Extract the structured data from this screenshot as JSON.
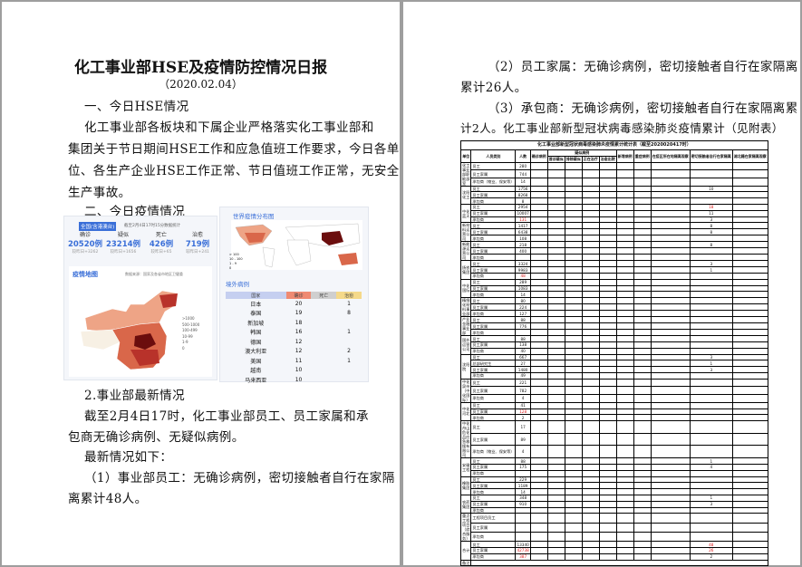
{
  "page1": {
    "title": "化工事业部HSE及疫情防控情况日报",
    "date": "（2020.02.04）",
    "section1": "一、今日HSE情况",
    "para1": [
      "化工事业部各板块和下属企业严格落实化工事业部和",
      "集团关于节日期间HSE工作和应急值班工作要求，今日各单",
      "位、各生产企业HSE工作正常、节日值班工作正常，无安全",
      "生产事故。"
    ],
    "section2": "二、今日疫情情况",
    "image": {
      "badge": "全国(含港澳台)",
      "stat_time": "截至2月4日17时15分数据统计",
      "stats": [
        {
          "label": "确诊",
          "value": "20520例",
          "delta": "较昨日+3262"
        },
        {
          "label": "疑似",
          "value": "23214例",
          "delta": "较昨日+1656"
        },
        {
          "label": "死亡",
          "value": "426例",
          "delta": "较昨日+65"
        },
        {
          "label": "治愈",
          "value": "719例",
          "delta": "较昨日+241"
        }
      ],
      "map_title": "疫情地图",
      "map_source": "数据来源：国家及各省市地区卫健委",
      "legend": [
        ">1000",
        "500-1000",
        "100-499",
        "10-99",
        "1-9",
        "0"
      ],
      "legend_colors": [
        "#6b0d0d",
        "#b8322a",
        "#d9674a",
        "#eea486",
        "#f7dcc6",
        "#f7f0e4"
      ],
      "world_title": "世界疫情分布图",
      "world_legend": [
        "> 100",
        "10 - 100",
        "1 - 9",
        "0"
      ],
      "abroad_title": "境外病例",
      "abroad_headers": [
        "国家",
        "确诊",
        "死亡",
        "治愈"
      ],
      "abroad_rows": [
        [
          "日本",
          "20",
          "",
          "1"
        ],
        [
          "泰国",
          "19",
          "",
          "8"
        ],
        [
          "新加坡",
          "18",
          "",
          ""
        ],
        [
          "韩国",
          "16",
          "",
          "1"
        ],
        [
          "德国",
          "12",
          "",
          ""
        ],
        [
          "澳大利亚",
          "12",
          "",
          "2"
        ],
        [
          "美国",
          "11",
          "",
          "1"
        ],
        [
          "越南",
          "10",
          "",
          ""
        ],
        [
          "马来西亚",
          "10",
          "",
          ""
        ]
      ]
    },
    "section3": "2.事业部最新情况",
    "para2": [
      "截至2月4日17时，化工事业部员工、员工家属和承",
      "包商无确诊病例、无疑似病例。"
    ],
    "para3": "最新情况如下：",
    "para4": [
      "（1）事业部员工：无确诊病例，密切接触者自行在家隔",
      "离累计48人。"
    ]
  },
  "page2": {
    "lines": [
      "（2）员工家属：无确诊病例，密切接触者自行在家隔离",
      "累计26人。",
      "（3）承包商：无确诊病例，密切接触者自行在家隔离累",
      "计2人。化工事业部新型冠状病毒感染肺炎疫情累计（见附表）"
    ],
    "table": {
      "title": "化工事业部新型冠状病毒感染肺炎疫情累计统计表（截至2020020417时）",
      "headers": [
        "单位",
        "人员类别",
        "人数",
        "确诊病例",
        "疑似病例",
        "新增病例",
        "重症病例",
        "在疫区所在地隔离观察",
        "密切接触者自行在家隔离",
        "湖北籍在家隔离观察"
      ],
      "sub_headers": [
        "首诊疑似",
        "排除疑似",
        "正在治疗",
        "治愈出院"
      ],
      "groups": [
        {
          "unit": "化工事业部职能部室",
          "rows": [
            [
              "员工",
              "280",
              ""
            ],
            [
              "员工家属",
              "744",
              ""
            ],
            [
              "承包商（物业、保安等）",
              "14",
              ""
            ]
          ]
        },
        {
          "unit": "沈阳化工",
          "rows": [
            [
              "员工",
              "1756",
              "10"
            ],
            [
              "员工家属",
              "8268",
              ""
            ],
            [
              "承包商",
              "8",
              ""
            ]
          ]
        },
        {
          "unit": "中化蓝天",
          "rows": [
            [
              "员工",
              "2954",
              "18"
            ],
            [
              "员工家属",
              "10007",
              "11"
            ],
            [
              "承包商",
              "131",
              "3"
            ]
          ]
        },
        {
          "unit": "新材料运营公司",
          "rows": [
            [
              "员工",
              "1417",
              "8"
            ],
            [
              "员工家属",
              "6438",
              "8"
            ],
            [
              "承包商",
              "108",
              ""
            ]
          ]
        },
        {
          "unit": "新能源运营公司",
          "rows": [
            [
              "员工",
              "218",
              "8"
            ],
            [
              "员工家属",
              "400",
              ""
            ],
            [
              "承包商",
              "",
              ""
            ]
          ]
        },
        {
          "unit": "扬农集团",
          "rows": [
            [
              "员工",
              "3324",
              "3"
            ],
            [
              "员工家属",
              "9983",
              "1"
            ],
            [
              "承包商",
              "48",
              ""
            ]
          ]
        },
        {
          "unit": "中化国际",
          "rows": [
            [
              "员工",
              "289",
              ""
            ],
            [
              "员工家属",
              "1083",
              ""
            ],
            [
              "承包商",
              "14",
              ""
            ]
          ]
        },
        {
          "unit": "精细化材料事业部",
          "rows": [
            [
              "员工",
              "80",
              ""
            ],
            [
              "员工家属",
              "224",
              ""
            ],
            [
              "承包商",
              "127",
              ""
            ]
          ]
        },
        {
          "unit": "产业金融事业部",
          "rows": [
            [
              "员工",
              "88",
              ""
            ],
            [
              "员工家属",
              "776",
              ""
            ],
            [
              "承包商",
              "",
              ""
            ]
          ]
        },
        {
          "unit": "国外运营公司",
          "rows": [
            [
              "员工",
              "88",
              ""
            ],
            [
              "员工家属",
              "138",
              ""
            ],
            [
              "承包商",
              "40",
              ""
            ]
          ]
        },
        {
          "unit": "沈阳院",
          "rows": [
            [
              "员工",
              "667",
              "3"
            ],
            [
              "总部研究生",
              "27",
              "1"
            ],
            [
              "员工家属",
              "1480",
              "3"
            ],
            [
              "承包商",
              "49",
              ""
            ]
          ]
        },
        {
          "unit": "中化泉州（中化国际）",
          "rows": [
            [
              "员工",
              "221",
              ""
            ],
            [
              "员工家属",
              "782",
              ""
            ],
            [
              "承包商",
              "4",
              ""
            ]
          ]
        },
        {
          "unit": "中化河北",
          "rows": [
            [
              "员工",
              "41",
              ""
            ],
            [
              "员工家属",
              "128",
              ""
            ],
            [
              "承包商",
              "2",
              ""
            ]
          ]
        },
        {
          "unit": "中化舟山危化品应急救援有限公司",
          "rows": [
            [
              "员工",
              "17",
              ""
            ],
            [
              "员工家属",
              "89",
              ""
            ],
            [
              "承包商（物业、保安等）",
              "4",
              ""
            ]
          ]
        },
        {
          "unit": "安徽工程",
          "rows": [
            [
              "员工",
              "88",
              "1"
            ],
            [
              "员工家属",
              "175",
              "4"
            ],
            [
              "承包商",
              "",
              ""
            ]
          ]
        },
        {
          "unit": "橡胶集团",
          "rows": [
            [
              "员工",
              "229",
              ""
            ],
            [
              "员工家属",
              "1189",
              ""
            ],
            [
              "承包商",
              "14",
              ""
            ]
          ]
        },
        {
          "unit": "农药集团",
          "rows": [
            [
              "员工",
              "348",
              "1"
            ],
            [
              "员工家属",
              "910",
              "3"
            ],
            [
              "承包商",
              "",
              ""
            ]
          ]
        },
        {
          "unit": "重点工程项目（综合服务）",
          "rows": [
            [
              "工程项目员工",
              "",
              ""
            ],
            [
              "员工家属",
              "",
              ""
            ],
            [
              "承包商",
              "",
              ""
            ]
          ]
        },
        {
          "unit": "合计",
          "rows": [
            [
              "员工",
              "13340",
              "48"
            ],
            [
              "员工家属",
              "42738",
              "26"
            ],
            [
              "承包商",
              "387",
              "2"
            ]
          ]
        }
      ],
      "red_values": [
        "131",
        "128",
        "42738",
        "387",
        "18",
        "48",
        "26"
      ],
      "remark": "备注"
    }
  }
}
